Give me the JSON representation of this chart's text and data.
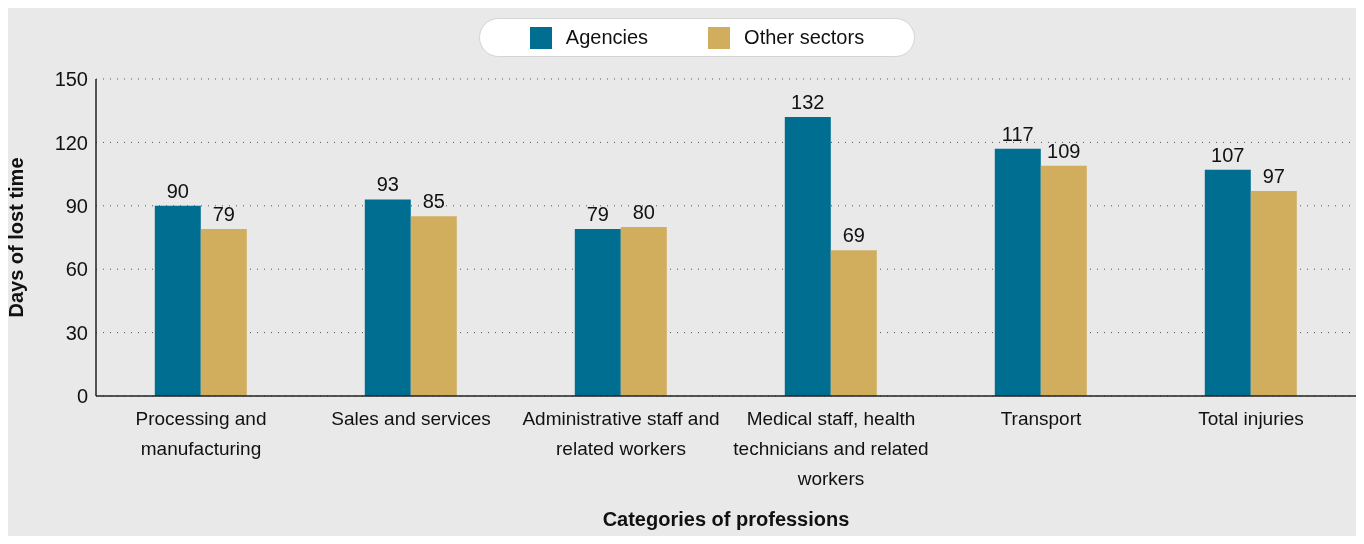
{
  "chart_data": {
    "type": "bar",
    "xlabel": "Categories of professions",
    "ylabel": "Days of lost time",
    "categories": [
      "Processing and manufacturing",
      "Sales and services",
      "Administrative staff and related workers",
      "Medical staff, health technicians and related workers",
      "Transport",
      "Total injuries"
    ],
    "series": [
      {
        "name": "Agencies",
        "color": "#006e91",
        "values": [
          90,
          93,
          79,
          132,
          117,
          107
        ]
      },
      {
        "name": "Other sectors",
        "color": "#d1ae5e",
        "values": [
          79,
          85,
          80,
          69,
          109,
          97
        ]
      }
    ],
    "ylim": [
      0,
      150
    ],
    "yticks": [
      0,
      30,
      60,
      90,
      120,
      150
    ],
    "grid": "y",
    "legend": "top",
    "data_labels": true
  }
}
